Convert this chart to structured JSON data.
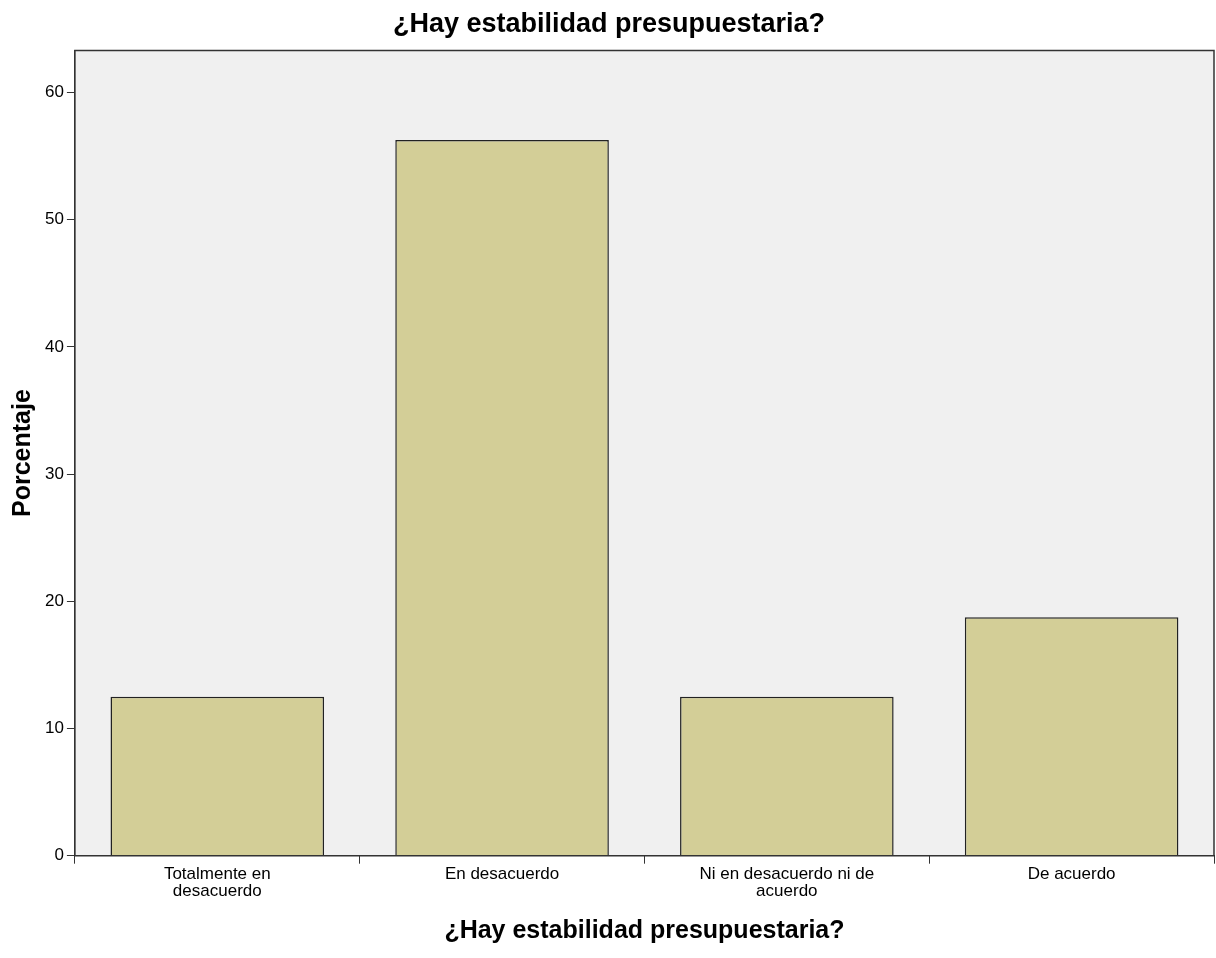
{
  "chart_data": {
    "type": "bar",
    "title": "¿Hay estabilidad presupuestaria?",
    "xlabel": "¿Hay estabilidad presupuestaria?",
    "ylabel": "Porcentaje",
    "categories": [
      "Totalmente en desacuerdo",
      "En desacuerdo",
      "Ni en desacuerdo ni de acuerdo",
      "De acuerdo"
    ],
    "values": [
      12.5,
      56.25,
      12.5,
      18.75
    ],
    "color": "#d3ce97",
    "ylim": [
      0,
      63.3
    ],
    "yticks": [
      0,
      10,
      20,
      30,
      40,
      50,
      60
    ],
    "grid": false,
    "legend": false
  }
}
